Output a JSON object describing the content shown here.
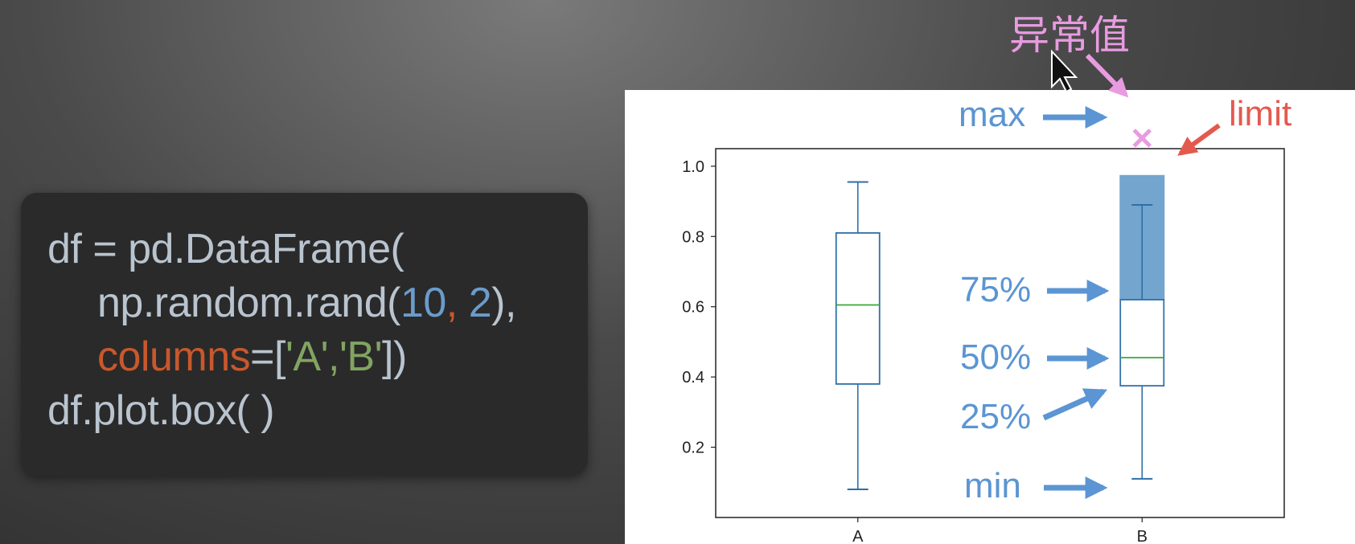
{
  "code": {
    "line1": "df = pd.DataFrame(",
    "line2_a": "np.random.rand(",
    "line2_b": "10",
    "line2_c": ", ",
    "line2_d": "2",
    "line2_e": "),",
    "line3_a": "columns",
    "line3_b": "=[",
    "line3_c": "'A'",
    "line3_d": ",",
    "line3_e": "'B'",
    "line3_f": "])",
    "line4": "df.plot.box( )"
  },
  "annotations": {
    "outlier": "异常值",
    "max": "max",
    "limit": "limit",
    "p75": "75%",
    "p50": "50%",
    "p25": "25%",
    "min": "min",
    "colors": {
      "outlier": "#e89be0",
      "label": "#5b95d3",
      "limit": "#e35a4d",
      "limit_fill": "#5b95c6"
    }
  },
  "chart_data": {
    "type": "box",
    "categories": [
      "A",
      "B"
    ],
    "ylim": [
      0.0,
      1.05
    ],
    "yticks": [
      0.2,
      0.4,
      0.6,
      0.8,
      1.0
    ],
    "ytick_labels": [
      "0.2",
      "0.4",
      "0.6",
      "0.8",
      "1.0"
    ],
    "boxes": [
      {
        "name": "A",
        "whisker_low": 0.08,
        "q1": 0.38,
        "median": 0.605,
        "q3": 0.81,
        "whisker_high": 0.955
      },
      {
        "name": "B",
        "whisker_low": 0.11,
        "q1": 0.375,
        "median": 0.455,
        "q3": 0.62,
        "whisker_high": 0.89,
        "limit": 0.975,
        "outlier": 1.08
      }
    ],
    "colors": {
      "box": "#2e6fa7",
      "median": "#3aa83a"
    }
  }
}
